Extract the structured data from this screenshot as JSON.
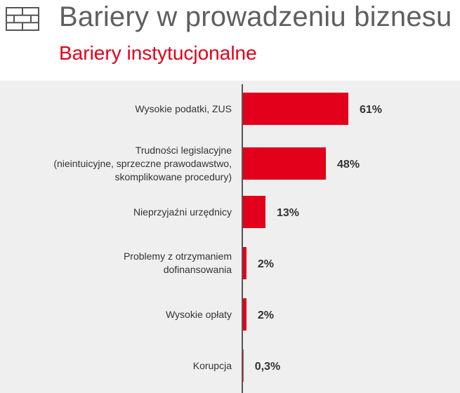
{
  "header": {
    "icon": "brick-wall-icon",
    "title": "Bariery w prowadzeniu biznesu",
    "subtitle": "Bariery instytucjonalne"
  },
  "colors": {
    "accent": "#e2001a",
    "title_text": "#5f5f5f",
    "panel_background": "#efefef"
  },
  "chart_data": {
    "type": "bar",
    "orientation": "horizontal",
    "categories": [
      "Wysokie podatki, ZUS",
      "Trudności legislacyjne\n(nieintuicyjne, sprzeczne prawodawstwo,\nskomplikowane procedury)",
      "Nieprzyjaźni urzędnicy",
      "Problemy z otrzymaniem\ndofinansowania",
      "Wysokie opłaty",
      "Korupcja"
    ],
    "values": [
      61,
      48,
      13,
      2,
      2,
      0.3
    ],
    "value_labels": [
      "61%",
      "48%",
      "13%",
      "2%",
      "2%",
      "0,3%"
    ],
    "xlim": [
      0,
      100
    ],
    "grid": false,
    "legend": "none"
  }
}
